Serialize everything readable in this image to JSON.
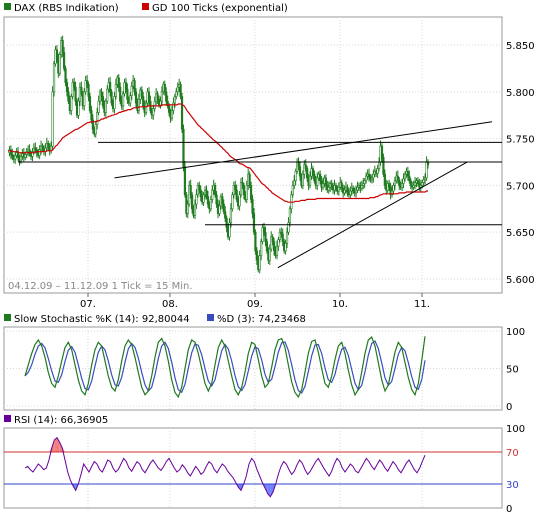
{
  "colors": {
    "price_candle": "#1f7a1f",
    "ma_line": "#cc0000",
    "stoch_k": "#1f7a1f",
    "stoch_d": "#3b4cc0",
    "rsi_line": "#660099",
    "rsi_over_fill": "#f08080",
    "rsi_under_fill": "#7080ff",
    "grid": "#d8d8d8",
    "panel_border": "#999999",
    "plot_bg": "#ffffff"
  },
  "chart_data": [
    {
      "type": "candlestick",
      "legend": [
        {
          "label": "DAX (RBS Indikation)",
          "color": "#1f7a1f"
        },
        {
          "label": "GD 100 Ticks (exponential)",
          "color": "#cc0000"
        }
      ],
      "info_text": "04.12.09 – 11.12.09   1 Tick = 15 Min.",
      "x_tick_labels": [
        "07.",
        "08.",
        "09.",
        "10.",
        "11."
      ],
      "y_ticks": [
        "5.600",
        "5.650",
        "5.700",
        "5.750",
        "5.800",
        "5.850"
      ],
      "ylim": [
        5585,
        5880
      ],
      "grid": true,
      "close_series": [
        5735,
        5738,
        5733,
        5730,
        5728,
        5732,
        5735,
        5730,
        5726,
        5731,
        5734,
        5730,
        5733,
        5736,
        5738,
        5734,
        5731,
        5736,
        5740,
        5738,
        5735,
        5732,
        5738,
        5742,
        5739,
        5736,
        5740,
        5745,
        5741,
        5737,
        5742,
        5800,
        5830,
        5845,
        5835,
        5820,
        5840,
        5855,
        5842,
        5825,
        5810,
        5800,
        5790,
        5780,
        5795,
        5810,
        5805,
        5790,
        5775,
        5790,
        5805,
        5798,
        5785,
        5800,
        5812,
        5808,
        5795,
        5780,
        5770,
        5760,
        5755,
        5765,
        5778,
        5790,
        5800,
        5795,
        5785,
        5778,
        5790,
        5803,
        5810,
        5800,
        5788,
        5782,
        5795,
        5808,
        5815,
        5805,
        5790,
        5785,
        5798,
        5810,
        5803,
        5792,
        5788,
        5796,
        5806,
        5812,
        5800,
        5788,
        5780,
        5792,
        5802,
        5795,
        5785,
        5778,
        5788,
        5800,
        5790,
        5780,
        5775,
        5782,
        5790,
        5798,
        5792,
        5786,
        5790,
        5800,
        5808,
        5800,
        5790,
        5785,
        5778,
        5772,
        5780,
        5788,
        5795,
        5800,
        5805,
        5808,
        5795,
        5760,
        5720,
        5690,
        5670,
        5680,
        5700,
        5690,
        5675,
        5668,
        5680,
        5690,
        5700,
        5695,
        5688,
        5682,
        5690,
        5695,
        5688,
        5680,
        5675,
        5685,
        5695,
        5700,
        5690,
        5680,
        5670,
        5678,
        5688,
        5680,
        5672,
        5665,
        5655,
        5645,
        5660,
        5675,
        5690,
        5700,
        5695,
        5685,
        5678,
        5690,
        5703,
        5700,
        5690,
        5685,
        5700,
        5712,
        5700,
        5685,
        5670,
        5650,
        5630,
        5620,
        5610,
        5625,
        5640,
        5655,
        5650,
        5640,
        5630,
        5620,
        5632,
        5645,
        5640,
        5630,
        5625,
        5635,
        5642,
        5650,
        5648,
        5640,
        5630,
        5638,
        5650,
        5660,
        5675,
        5690,
        5700,
        5705,
        5715,
        5725,
        5720,
        5710,
        5700,
        5712,
        5722,
        5718,
        5708,
        5700,
        5710,
        5718,
        5712,
        5705,
        5700,
        5708,
        5712,
        5705,
        5698,
        5702,
        5708,
        5700,
        5695,
        5698,
        5702,
        5698,
        5695,
        5700,
        5696,
        5694,
        5698,
        5703,
        5697,
        5692,
        5695,
        5698,
        5693,
        5690,
        5694,
        5697,
        5694,
        5692,
        5695,
        5698,
        5700,
        5697,
        5700,
        5702,
        5705,
        5710,
        5712,
        5709,
        5706,
        5708,
        5712,
        5715,
        5713,
        5718,
        5725,
        5742,
        5730,
        5712,
        5700,
        5695,
        5702,
        5698,
        5690,
        5694,
        5700,
        5705,
        5710,
        5706,
        5700,
        5698,
        5702,
        5707,
        5712,
        5715,
        5710,
        5705,
        5700,
        5698,
        5700,
        5703,
        5705,
        5702,
        5698,
        5700,
        5703,
        5706,
        5708,
        5725,
        5722
      ],
      "ma_series": [
        5737,
        5737,
        5737,
        5736,
        5736,
        5736,
        5736,
        5736,
        5735,
        5735,
        5735,
        5735,
        5735,
        5735,
        5735,
        5735,
        5735,
        5735,
        5735,
        5736,
        5736,
        5736,
        5736,
        5736,
        5736,
        5736,
        5736,
        5737,
        5737,
        5737,
        5737,
        5738,
        5740,
        5742,
        5743,
        5745,
        5747,
        5749,
        5751,
        5752,
        5753,
        5754,
        5755,
        5756,
        5757,
        5758,
        5759,
        5760,
        5760,
        5761,
        5762,
        5763,
        5764,
        5765,
        5766,
        5767,
        5767,
        5768,
        5768,
        5768,
        5768,
        5768,
        5769,
        5769,
        5770,
        5771,
        5771,
        5772,
        5772,
        5773,
        5774,
        5774,
        5775,
        5775,
        5776,
        5776,
        5777,
        5778,
        5778,
        5779,
        5779,
        5780,
        5780,
        5781,
        5781,
        5781,
        5782,
        5783,
        5783,
        5783,
        5783,
        5784,
        5784,
        5784,
        5784,
        5784,
        5784,
        5785,
        5785,
        5785,
        5785,
        5785,
        5785,
        5785,
        5785,
        5785,
        5785,
        5786,
        5786,
        5786,
        5786,
        5786,
        5786,
        5786,
        5786,
        5786,
        5786,
        5786,
        5787,
        5787,
        5787,
        5786,
        5785,
        5783,
        5780,
        5778,
        5776,
        5774,
        5772,
        5770,
        5768,
        5766,
        5764,
        5763,
        5761,
        5760,
        5758,
        5757,
        5755,
        5754,
        5752,
        5751,
        5749,
        5748,
        5747,
        5745,
        5744,
        5742,
        5741,
        5739,
        5738,
        5736,
        5735,
        5733,
        5731,
        5730,
        5729,
        5728,
        5727,
        5726,
        5724,
        5723,
        5723,
        5722,
        5721,
        5720,
        5719,
        5719,
        5718,
        5716,
        5714,
        5712,
        5710,
        5708,
        5706,
        5704,
        5702,
        5701,
        5700,
        5698,
        5697,
        5695,
        5694,
        5692,
        5691,
        5690,
        5689,
        5688,
        5687,
        5686,
        5685,
        5684,
        5683,
        5683,
        5682,
        5682,
        5682,
        5682,
        5682,
        5683,
        5683,
        5683,
        5683,
        5684,
        5684,
        5684,
        5684,
        5685,
        5685,
        5685,
        5685,
        5685,
        5685,
        5685,
        5686,
        5686,
        5686,
        5686,
        5686,
        5686,
        5686,
        5686,
        5686,
        5686,
        5686,
        5686,
        5686,
        5686,
        5686,
        5686,
        5686,
        5686,
        5686,
        5686,
        5686,
        5686,
        5686,
        5686,
        5686,
        5686,
        5686,
        5686,
        5686,
        5686,
        5686,
        5686,
        5686,
        5686,
        5686,
        5686,
        5686,
        5687,
        5687,
        5687,
        5687,
        5688,
        5688,
        5689,
        5690,
        5690,
        5691,
        5691,
        5691,
        5691,
        5691,
        5691,
        5691,
        5691,
        5691,
        5691,
        5691,
        5692,
        5692,
        5692,
        5692,
        5692,
        5693,
        5693,
        5693,
        5693,
        5693,
        5693,
        5693,
        5693,
        5693,
        5693,
        5693,
        5693,
        5693,
        5693,
        5694,
        5694
      ],
      "horizontal_lines": [
        5746,
        5725,
        5658
      ],
      "trend_lines": [
        {
          "from": [
            0.222,
            5708
          ],
          "to": [
            0.98,
            5768
          ]
        },
        {
          "from": [
            0.55,
            5612
          ],
          "to": [
            0.93,
            5725
          ]
        }
      ]
    },
    {
      "type": "line",
      "legend": [
        {
          "label": "Slow Stochastic %K (14): 92,80044",
          "color": "#1f7a1f"
        },
        {
          "label": "%D (3): 74,23468",
          "color": "#3b4cc0"
        }
      ],
      "y_ticks": [
        "0",
        "50",
        "100"
      ],
      "ylim": [
        0,
        100
      ],
      "k_series": [
        40,
        55,
        70,
        82,
        88,
        80,
        65,
        45,
        30,
        25,
        40,
        60,
        78,
        85,
        75,
        55,
        35,
        20,
        15,
        30,
        55,
        75,
        85,
        80,
        60,
        40,
        25,
        20,
        35,
        60,
        80,
        88,
        82,
        65,
        45,
        25,
        15,
        20,
        40,
        65,
        85,
        90,
        80,
        60,
        35,
        18,
        12,
        25,
        50,
        75,
        88,
        85,
        70,
        50,
        30,
        20,
        30,
        55,
        78,
        88,
        80,
        60,
        40,
        22,
        15,
        25,
        45,
        70,
        85,
        82,
        62,
        40,
        25,
        30,
        52,
        75,
        88,
        90,
        78,
        55,
        32,
        18,
        12,
        22,
        45,
        70,
        86,
        88,
        72,
        50,
        30,
        25,
        40,
        62,
        80,
        85,
        70,
        48,
        28,
        15,
        22,
        45,
        70,
        88,
        92,
        80,
        58,
        35,
        20,
        28,
        50,
        72,
        85,
        78,
        58,
        38,
        22,
        15,
        30,
        60,
        93
      ]
    },
    {
      "type": "line",
      "legend": [
        {
          "label": "RSI (14): 66,36905",
          "color": "#660099"
        }
      ],
      "y_ticks": [
        "0",
        "30",
        "70",
        "100"
      ],
      "ylim": [
        0,
        100
      ],
      "levels": [
        30,
        70
      ],
      "rsi_series": [
        50,
        52,
        48,
        45,
        50,
        55,
        52,
        48,
        50,
        60,
        75,
        85,
        88,
        82,
        75,
        60,
        45,
        35,
        28,
        22,
        30,
        42,
        55,
        50,
        45,
        52,
        58,
        55,
        48,
        45,
        52,
        60,
        58,
        50,
        45,
        48,
        55,
        62,
        58,
        50,
        46,
        52,
        58,
        55,
        48,
        44,
        50,
        56,
        60,
        55,
        50,
        47,
        52,
        58,
        62,
        56,
        50,
        45,
        48,
        54,
        50,
        44,
        40,
        46,
        52,
        48,
        42,
        45,
        52,
        58,
        55,
        48,
        44,
        50,
        55,
        52,
        46,
        42,
        38,
        32,
        26,
        22,
        30,
        40,
        55,
        62,
        58,
        48,
        40,
        32,
        25,
        18,
        14,
        20,
        30,
        42,
        52,
        58,
        55,
        48,
        42,
        46,
        54,
        60,
        56,
        48,
        42,
        46,
        52,
        58,
        62,
        56,
        50,
        45,
        40,
        46,
        55,
        62,
        58,
        50,
        45,
        50,
        55,
        52,
        46,
        44,
        50,
        56,
        62,
        58,
        52,
        48,
        54,
        60,
        56,
        50,
        46,
        52,
        58,
        54,
        48,
        44,
        50,
        56,
        60,
        54,
        48,
        44,
        50,
        58,
        66
      ]
    }
  ]
}
